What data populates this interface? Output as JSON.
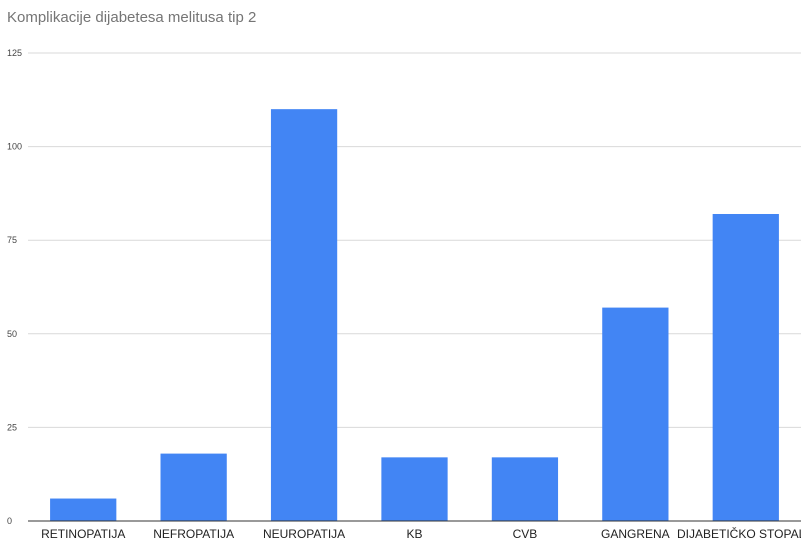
{
  "chart_data": {
    "type": "bar",
    "title": "Komplikacije dijabetesa melitusa tip 2",
    "categories": [
      "RETINOPATIJA",
      "NEFROPATIJA",
      "NEUROPATIJA",
      "KB",
      "CVB",
      "GANGRENA",
      "DIJABETIČKO STOPALO"
    ],
    "values": [
      6,
      18,
      110,
      17,
      17,
      57,
      82
    ],
    "ylim": [
      0,
      125
    ],
    "yticks": [
      0,
      25,
      50,
      75,
      100,
      125
    ],
    "grid": true,
    "legend": "none",
    "bar_color": "#4285F4",
    "grid_color": "#d9d9d9",
    "axis_color": "#333333"
  }
}
